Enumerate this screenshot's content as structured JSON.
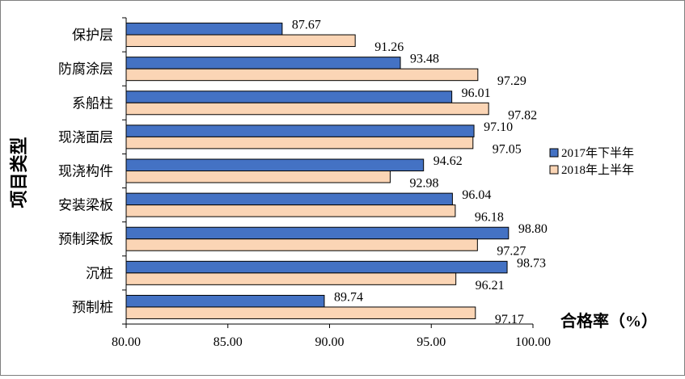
{
  "chart_data": {
    "type": "bar",
    "orientation": "horizontal",
    "categories": [
      "保护层",
      "防腐涂层",
      "系船柱",
      "现浇面层",
      "现浇构件",
      "安装梁板",
      "预制梁板",
      "沉桩",
      "预制桩"
    ],
    "series": [
      {
        "name": "2017年下半年",
        "values": [
          87.67,
          93.48,
          96.01,
          97.1,
          94.62,
          96.04,
          98.8,
          98.73,
          89.74
        ],
        "color": "#4472c4"
      },
      {
        "name": "2018年上半年",
        "values": [
          91.26,
          97.29,
          97.82,
          97.05,
          92.98,
          96.18,
          97.27,
          96.21,
          97.17
        ],
        "color": "#fbd5b5"
      }
    ],
    "data_labels": [
      [
        "87.67",
        "93.48",
        "96.01",
        "97.10",
        "94.62",
        "96.04",
        "98.80",
        "98.73",
        "89.74"
      ],
      [
        "91.26",
        "97.29",
        "97.82",
        "97.05",
        "92.98",
        "96.18",
        "97.27",
        "96.21",
        "97.17"
      ]
    ],
    "xlabel": "合格率（%）",
    "ylabel": "项目类型",
    "xlim": [
      80,
      100
    ],
    "xticks": [
      "80.00",
      "85.00",
      "90.00",
      "95.00",
      "100.00"
    ],
    "legend_position": "right",
    "grid": false
  }
}
